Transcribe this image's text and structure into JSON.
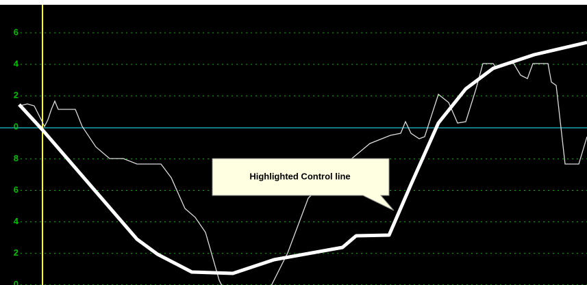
{
  "axis_labels": [
    "6",
    "4",
    "2",
    "0",
    "8",
    "6",
    "4",
    "2",
    "0"
  ],
  "callout": "Highlighted Control line"
}
